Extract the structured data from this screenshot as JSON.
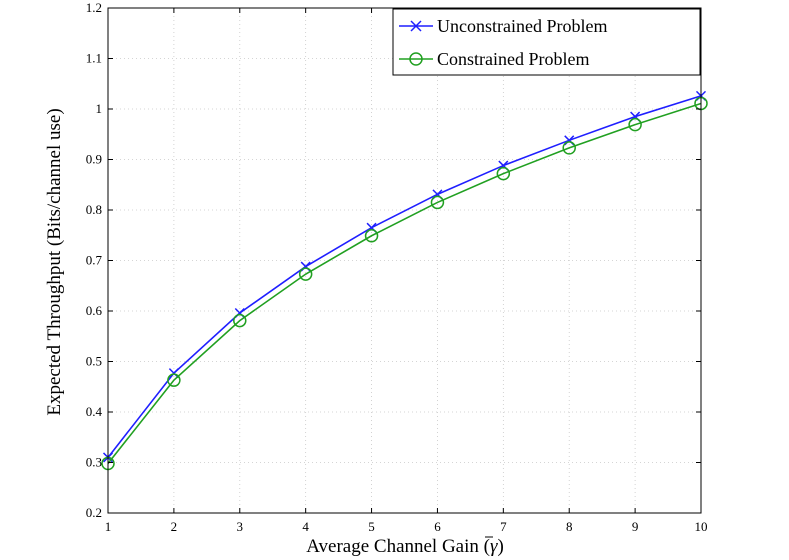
{
  "chart_data": {
    "type": "line",
    "title": "",
    "xlabel": "Average Channel Gain (γ̄)",
    "xlabel_main": "Average Channel Gain (",
    "xlabel_symbol": "γ",
    "xlabel_close": ")",
    "ylabel": "Expected Throughput (Bits/channel use)",
    "xlim": [
      1,
      10
    ],
    "ylim": [
      0.2,
      1.2
    ],
    "xticks": [
      1,
      2,
      3,
      4,
      5,
      6,
      7,
      8,
      9,
      10
    ],
    "yticks": [
      0.2,
      0.3,
      0.4,
      0.5,
      0.6,
      0.7,
      0.8,
      0.9,
      1,
      1.1,
      1.2
    ],
    "ytick_labels": [
      "0.2",
      "0.3",
      "0.4",
      "0.5",
      "0.6",
      "0.7",
      "0.8",
      "0.9",
      "1",
      "1.1",
      "1.2"
    ],
    "grid": true,
    "legend_position": "top-right",
    "x": [
      1,
      2,
      3,
      4,
      5,
      6,
      7,
      8,
      9,
      10
    ],
    "series": [
      {
        "name": "Unconstrained Problem",
        "color": "#1f1fff",
        "marker": "x",
        "values": [
          0.31,
          0.477,
          0.596,
          0.688,
          0.765,
          0.831,
          0.888,
          0.938,
          0.985,
          1.026
        ]
      },
      {
        "name": "Constrained Problem",
        "color": "#21a021",
        "marker": "o",
        "values": [
          0.298,
          0.463,
          0.581,
          0.673,
          0.749,
          0.815,
          0.872,
          0.923,
          0.969,
          1.011
        ]
      }
    ]
  }
}
